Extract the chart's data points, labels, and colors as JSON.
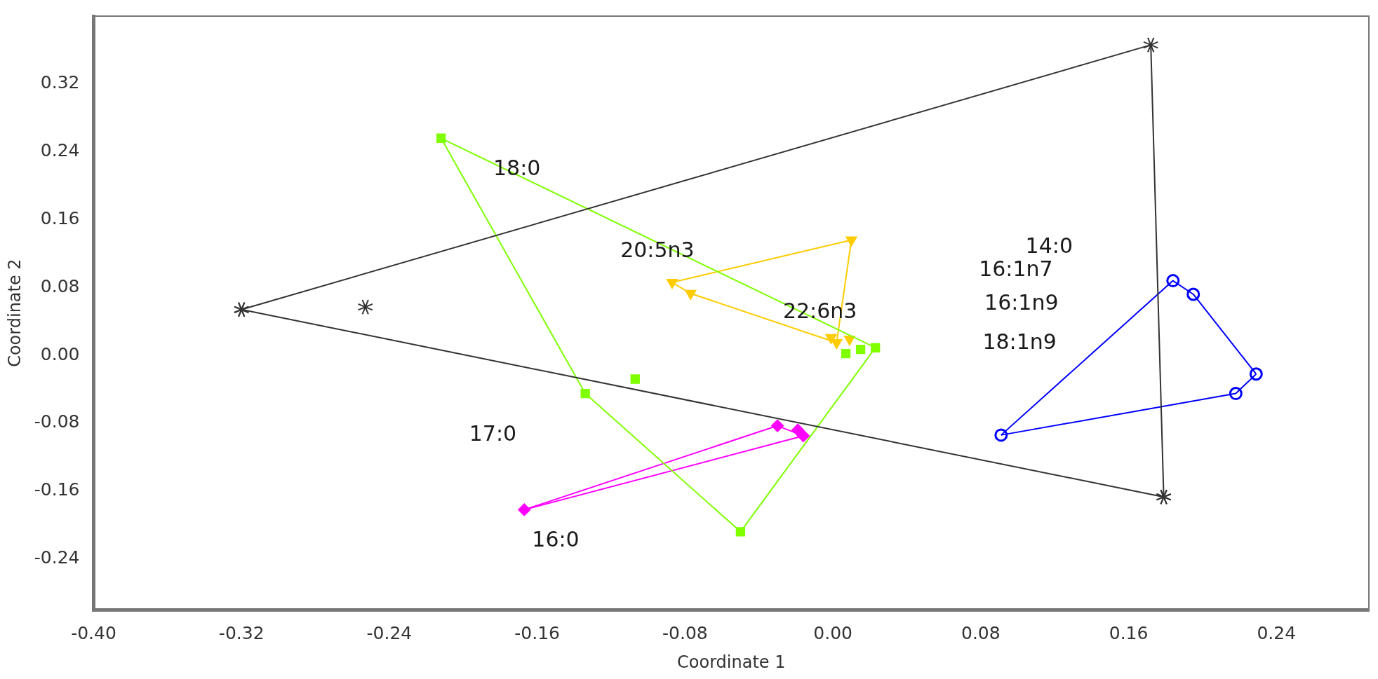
{
  "chart_data": {
    "type": "scatter",
    "xlabel": "Coordinate 1",
    "ylabel": "Coordinate 2",
    "xlim": [
      -0.4,
      0.29
    ],
    "ylim": [
      -0.3,
      0.4
    ],
    "xticks": [
      {
        "value": -0.4,
        "label": "-0.40"
      },
      {
        "value": -0.32,
        "label": "-0.32"
      },
      {
        "value": -0.24,
        "label": "-0.24"
      },
      {
        "value": -0.16,
        "label": "-0.16"
      },
      {
        "value": -0.08,
        "label": "-0.08"
      },
      {
        "value": 0,
        "label": "0.00"
      },
      {
        "value": 0.08,
        "label": "0.08"
      },
      {
        "value": 0.16,
        "label": "0.16"
      },
      {
        "value": 0.24,
        "label": "0.24"
      }
    ],
    "yticks": [
      {
        "value": -0.24,
        "label": "-0.24"
      },
      {
        "value": -0.16,
        "label": "-0.16"
      },
      {
        "value": -0.08,
        "label": "-0.08"
      },
      {
        "value": 0,
        "label": "0.00"
      },
      {
        "value": 0.08,
        "label": "0.08"
      },
      {
        "value": 0.16,
        "label": "0.16"
      },
      {
        "value": 0.24,
        "label": "0.24"
      },
      {
        "value": 0.32,
        "label": "0.32"
      }
    ],
    "grid": false,
    "legend": false,
    "series": [
      {
        "type": "line",
        "marker": "cross",
        "color": "#333333",
        "x": [
          -0.32,
          0.172,
          0.179
        ],
        "values": [
          0.054,
          0.366,
          -0.167
        ]
      },
      {
        "type": "line",
        "marker": "cross",
        "color": "#333333",
        "x": [
          -0.32,
          0.179
        ],
        "values": [
          0.054,
          -0.167
        ]
      },
      {
        "type": "line",
        "marker": "none",
        "color": "#7fff00",
        "x": [
          -0.212,
          0.023
        ],
        "values": [
          0.256,
          0.009
        ]
      },
      {
        "type": "line",
        "marker": "none",
        "color": "#7fff00",
        "x": [
          -0.212,
          -0.134,
          -0.05,
          0.023
        ],
        "values": [
          0.256,
          -0.045,
          -0.208,
          0.009
        ]
      },
      {
        "type": "line",
        "marker": "none",
        "color": "#ffcc00",
        "x": [
          -0.087,
          0.01
        ],
        "values": [
          0.086,
          0.136
        ]
      },
      {
        "type": "line",
        "marker": "none",
        "color": "#ffcc00",
        "x": [
          -0.087,
          -0.077,
          0.002,
          0.01
        ],
        "values": [
          0.086,
          0.073,
          0.015,
          0.136
        ]
      },
      {
        "type": "line",
        "marker": "none",
        "color": "#ff00ff",
        "x": [
          -0.167,
          -0.03,
          -0.016
        ],
        "values": [
          -0.182,
          -0.083,
          -0.095
        ]
      },
      {
        "type": "line",
        "marker": "none",
        "color": "#ff00ff",
        "x": [
          -0.167,
          -0.016
        ],
        "values": [
          -0.182,
          -0.095
        ]
      },
      {
        "type": "line",
        "marker": "none",
        "color": "#0000ff",
        "x": [
          0.091,
          0.184,
          0.195,
          0.229
        ],
        "values": [
          -0.094,
          0.088,
          0.072,
          -0.022
        ]
      },
      {
        "type": "line",
        "marker": "none",
        "color": "#0000ff",
        "x": [
          0.091,
          0.218,
          0.229
        ],
        "values": [
          -0.094,
          -0.045,
          -0.022
        ]
      },
      {
        "marker": "cross",
        "color": "#333333",
        "x": [
          -0.253
        ],
        "values": [
          0.057
        ]
      },
      {
        "marker": "square",
        "color": "#7fff00",
        "x": [
          -0.212,
          -0.134,
          -0.107,
          -0.05,
          0.007,
          0.015,
          0.023
        ],
        "values": [
          0.256,
          -0.045,
          -0.028,
          -0.208,
          0.002,
          0.007,
          0.009
        ]
      },
      {
        "marker": "triangle",
        "color": "#ffcc00",
        "x": [
          0.01,
          -0.087,
          -0.077,
          -0.001,
          0.009,
          0.002
        ],
        "values": [
          0.136,
          0.086,
          0.073,
          0.021,
          0.019,
          0.015
        ]
      },
      {
        "marker": "diamond",
        "color": "#ff00ff",
        "x": [
          -0.167,
          -0.03,
          -0.019,
          -0.016
        ],
        "values": [
          -0.182,
          -0.083,
          -0.088,
          -0.095
        ]
      },
      {
        "marker": "circle",
        "color": "#0000ff",
        "x": [
          0.091,
          0.184,
          0.195,
          0.229,
          0.218
        ],
        "values": [
          -0.094,
          0.088,
          0.072,
          -0.022,
          -0.045
        ]
      }
    ],
    "annotations": [
      "18:0",
      "20:5n3",
      "22:6n3",
      "14:0",
      "16:1n7",
      "16:1n9",
      "18:1n9",
      "17:0",
      "16:0"
    ]
  }
}
